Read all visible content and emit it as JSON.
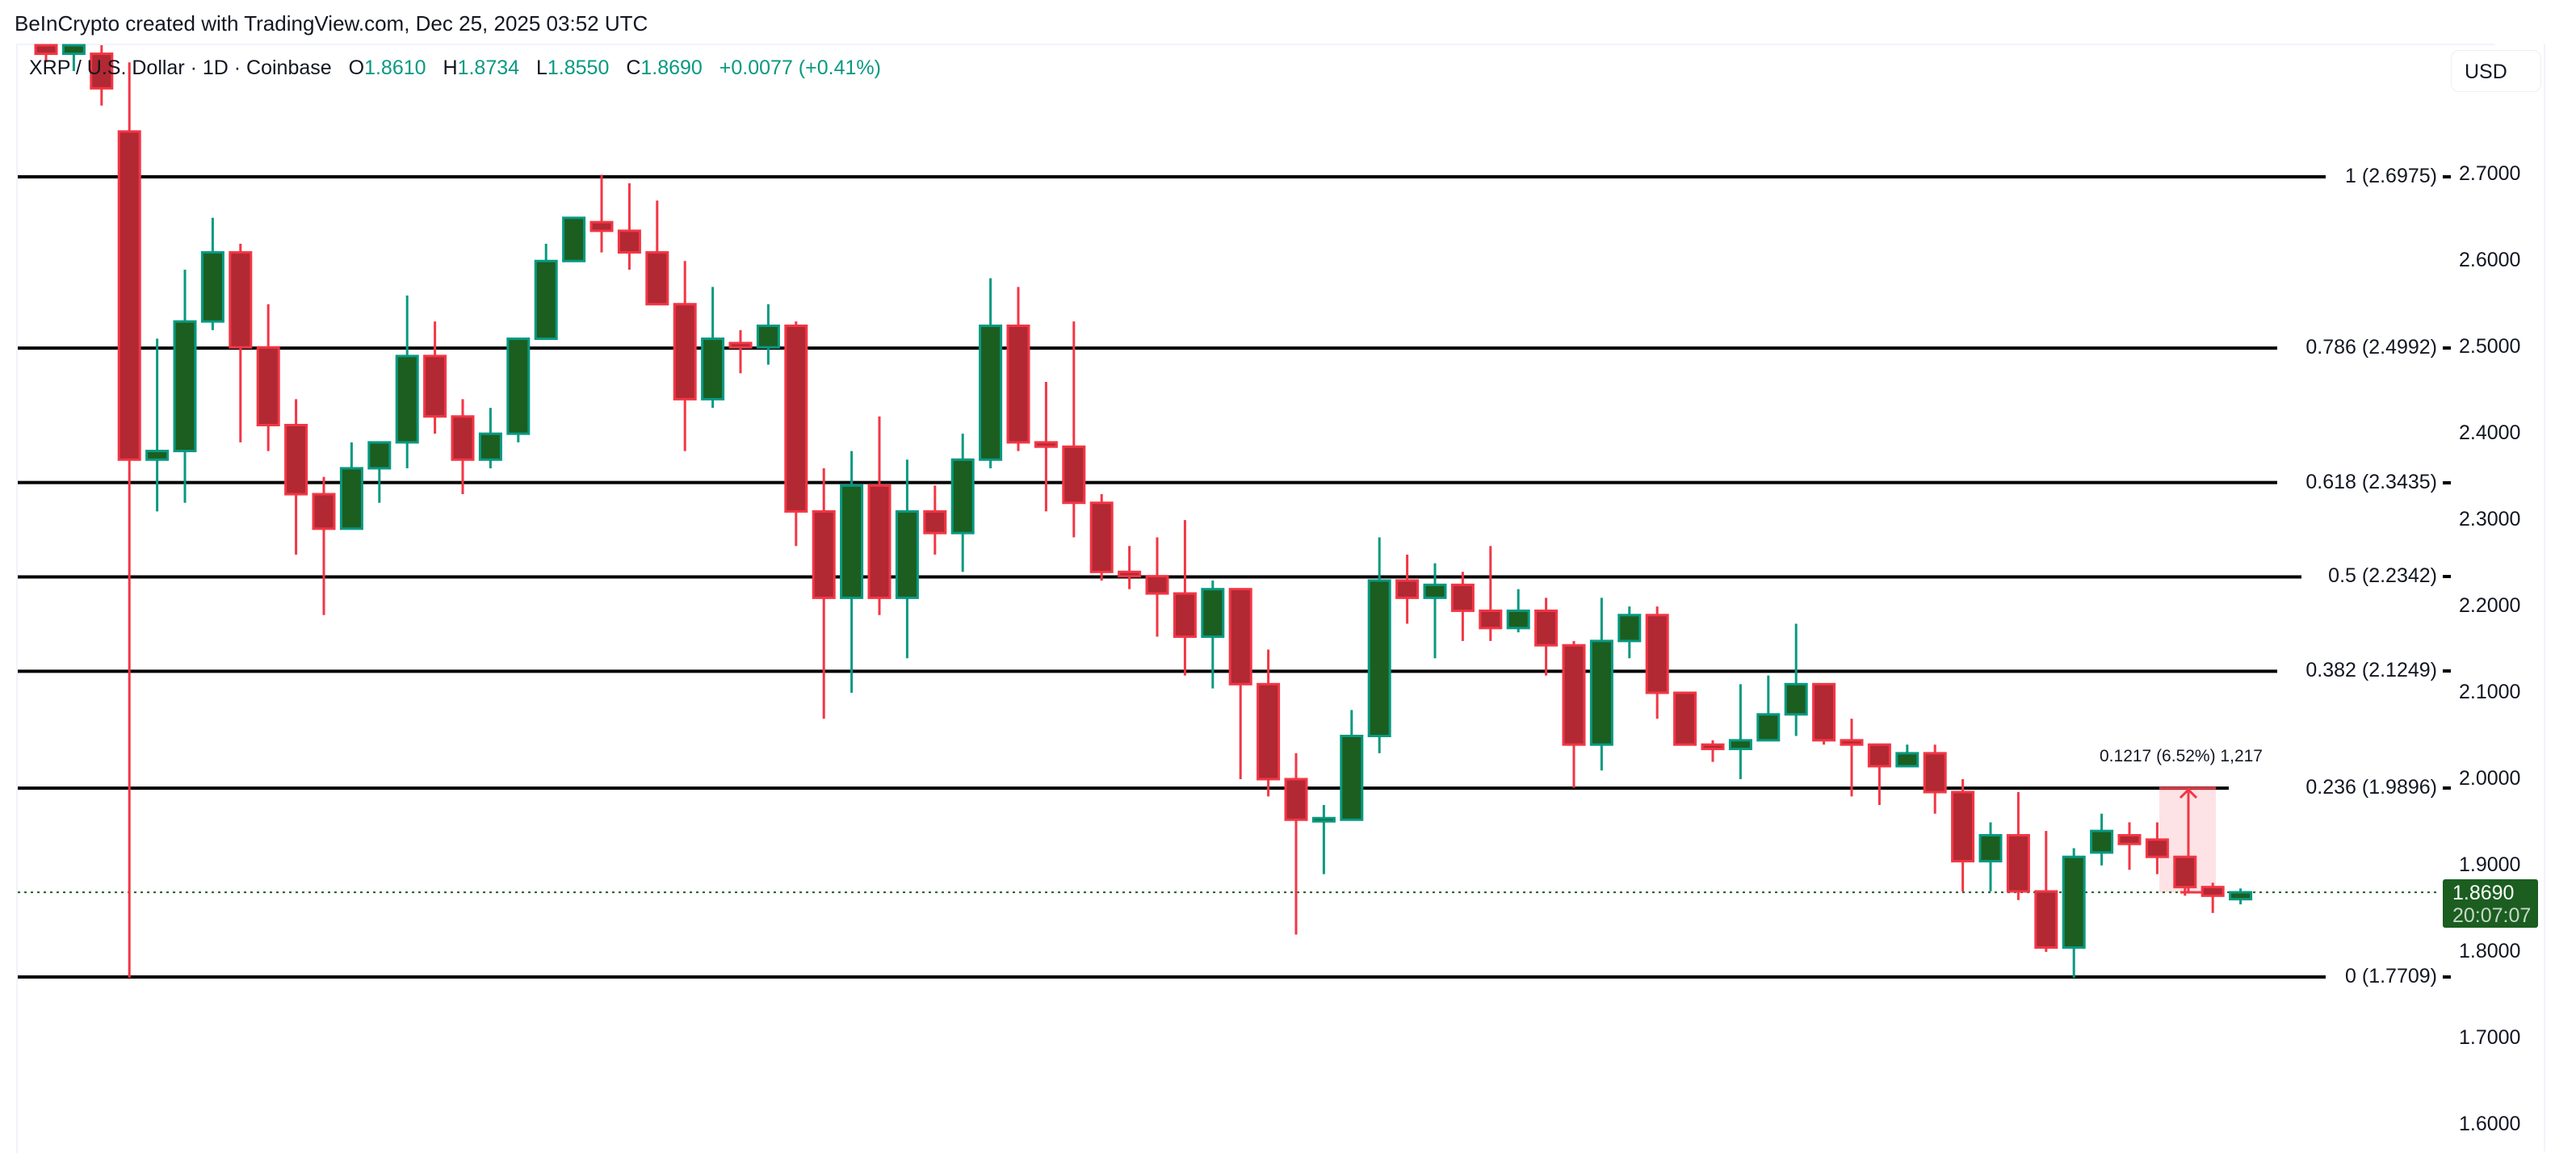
{
  "header": {
    "credit": "BeInCrypto created with TradingView.com, Dec 25, 2025 03:52 UTC"
  },
  "legend": {
    "symbol": "XRP / U.S. Dollar · 1D · Coinbase",
    "open_label": "O",
    "open": "1.8610",
    "high_label": "H",
    "high": "1.8734",
    "low_label": "L",
    "low": "1.8550",
    "close_label": "C",
    "close": "1.8690",
    "change": "+0.0077 (+0.41%)"
  },
  "currency_button": "USD",
  "current_price": {
    "value": "1.8690",
    "countdown": "20:07:07",
    "color": "#1b5e20"
  },
  "measure": {
    "label": "0.1217 (6.52%) 1,217",
    "from": 1.869,
    "to": 1.9896,
    "color": "#f23645"
  },
  "colors": {
    "up_fill": "#1b5e20",
    "up_border": "#089981",
    "down_fill": "#b22833",
    "down_border": "#f23645",
    "fib_line": "#000000"
  },
  "chart_data": {
    "type": "candlestick",
    "title": "XRP / U.S. Dollar · 1D · Coinbase",
    "xlabel": "",
    "ylabel": "USD",
    "ylim": [
      1.56,
      2.85
    ],
    "grid": false,
    "y_ticks": [
      "2.7000",
      "2.6000",
      "2.5000",
      "2.4000",
      "2.3000",
      "2.2000",
      "2.1000",
      "2.0000",
      "1.9000",
      "1.8000",
      "1.7000",
      "1.6000"
    ],
    "fib_levels": [
      {
        "ratio": "1",
        "price": 2.6975,
        "label": "1 (2.6975)"
      },
      {
        "ratio": "0.786",
        "price": 2.4992,
        "label": "0.786 (2.4992)"
      },
      {
        "ratio": "0.618",
        "price": 2.3435,
        "label": "0.618 (2.3435)"
      },
      {
        "ratio": "0.5",
        "price": 2.2342,
        "label": "0.5 (2.2342)"
      },
      {
        "ratio": "0.382",
        "price": 2.1249,
        "label": "0.382 (2.1249)"
      },
      {
        "ratio": "0.236",
        "price": 1.9896,
        "label": "0.236 (1.9896)"
      },
      {
        "ratio": "0",
        "price": 1.7709,
        "label": "0 (1.7709)"
      }
    ],
    "last_ohlc": {
      "open": 1.861,
      "high": 1.8734,
      "low": 1.855,
      "close": 1.869,
      "change": 0.0077,
      "change_pct": 0.41
    },
    "candles": [
      {
        "o": 2.86,
        "h": 2.9,
        "l": 2.83,
        "c": 2.84
      },
      {
        "o": 2.84,
        "h": 2.88,
        "l": 2.82,
        "c": 2.87
      },
      {
        "o": 2.84,
        "h": 2.88,
        "l": 2.78,
        "c": 2.8
      },
      {
        "o": 2.75,
        "h": 2.83,
        "l": 1.77,
        "c": 2.37
      },
      {
        "o": 2.37,
        "h": 2.51,
        "l": 2.31,
        "c": 2.38
      },
      {
        "o": 2.38,
        "h": 2.59,
        "l": 2.32,
        "c": 2.53
      },
      {
        "o": 2.53,
        "h": 2.65,
        "l": 2.52,
        "c": 2.61
      },
      {
        "o": 2.61,
        "h": 2.62,
        "l": 2.39,
        "c": 2.5
      },
      {
        "o": 2.5,
        "h": 2.55,
        "l": 2.38,
        "c": 2.41
      },
      {
        "o": 2.41,
        "h": 2.44,
        "l": 2.26,
        "c": 2.33
      },
      {
        "o": 2.33,
        "h": 2.35,
        "l": 2.19,
        "c": 2.29
      },
      {
        "o": 2.29,
        "h": 2.39,
        "l": 2.29,
        "c": 2.36
      },
      {
        "o": 2.36,
        "h": 2.39,
        "l": 2.32,
        "c": 2.39
      },
      {
        "o": 2.39,
        "h": 2.56,
        "l": 2.36,
        "c": 2.49
      },
      {
        "o": 2.49,
        "h": 2.53,
        "l": 2.4,
        "c": 2.42
      },
      {
        "o": 2.42,
        "h": 2.44,
        "l": 2.33,
        "c": 2.37
      },
      {
        "o": 2.37,
        "h": 2.43,
        "l": 2.36,
        "c": 2.4
      },
      {
        "o": 2.4,
        "h": 2.51,
        "l": 2.39,
        "c": 2.51
      },
      {
        "o": 2.51,
        "h": 2.62,
        "l": 2.51,
        "c": 2.6
      },
      {
        "o": 2.6,
        "h": 2.65,
        "l": 2.6,
        "c": 2.65
      },
      {
        "o": 2.645,
        "h": 2.7,
        "l": 2.61,
        "c": 2.635
      },
      {
        "o": 2.635,
        "h": 2.69,
        "l": 2.59,
        "c": 2.61
      },
      {
        "o": 2.61,
        "h": 2.67,
        "l": 2.56,
        "c": 2.55
      },
      {
        "o": 2.55,
        "h": 2.6,
        "l": 2.38,
        "c": 2.44
      },
      {
        "o": 2.44,
        "h": 2.57,
        "l": 2.43,
        "c": 2.51
      },
      {
        "o": 2.505,
        "h": 2.52,
        "l": 2.47,
        "c": 2.5
      },
      {
        "o": 2.5,
        "h": 2.55,
        "l": 2.48,
        "c": 2.525
      },
      {
        "o": 2.525,
        "h": 2.53,
        "l": 2.27,
        "c": 2.31
      },
      {
        "o": 2.31,
        "h": 2.36,
        "l": 2.07,
        "c": 2.21
      },
      {
        "o": 2.21,
        "h": 2.38,
        "l": 2.1,
        "c": 2.34
      },
      {
        "o": 2.34,
        "h": 2.42,
        "l": 2.19,
        "c": 2.21
      },
      {
        "o": 2.21,
        "h": 2.37,
        "l": 2.14,
        "c": 2.31
      },
      {
        "o": 2.31,
        "h": 2.34,
        "l": 2.26,
        "c": 2.285
      },
      {
        "o": 2.285,
        "h": 2.4,
        "l": 2.24,
        "c": 2.37
      },
      {
        "o": 2.37,
        "h": 2.58,
        "l": 2.36,
        "c": 2.525
      },
      {
        "o": 2.525,
        "h": 2.57,
        "l": 2.38,
        "c": 2.39
      },
      {
        "o": 2.39,
        "h": 2.46,
        "l": 2.31,
        "c": 2.385
      },
      {
        "o": 2.385,
        "h": 2.53,
        "l": 2.28,
        "c": 2.32
      },
      {
        "o": 2.32,
        "h": 2.33,
        "l": 2.23,
        "c": 2.24
      },
      {
        "o": 2.24,
        "h": 2.27,
        "l": 2.22,
        "c": 2.235
      },
      {
        "o": 2.235,
        "h": 2.28,
        "l": 2.165,
        "c": 2.215
      },
      {
        "o": 2.215,
        "h": 2.3,
        "l": 2.12,
        "c": 2.165
      },
      {
        "o": 2.165,
        "h": 2.23,
        "l": 2.105,
        "c": 2.22
      },
      {
        "o": 2.22,
        "h": 2.22,
        "l": 2.0,
        "c": 2.11
      },
      {
        "o": 2.11,
        "h": 2.15,
        "l": 1.98,
        "c": 2.0
      },
      {
        "o": 2.0,
        "h": 2.03,
        "l": 1.82,
        "c": 1.953
      },
      {
        "o": 1.953,
        "h": 1.97,
        "l": 1.89,
        "c": 1.953
      },
      {
        "o": 1.953,
        "h": 2.08,
        "l": 1.953,
        "c": 2.05
      },
      {
        "o": 2.05,
        "h": 2.28,
        "l": 2.03,
        "c": 2.23
      },
      {
        "o": 2.23,
        "h": 2.26,
        "l": 2.18,
        "c": 2.21
      },
      {
        "o": 2.21,
        "h": 2.25,
        "l": 2.14,
        "c": 2.225
      },
      {
        "o": 2.225,
        "h": 2.24,
        "l": 2.16,
        "c": 2.195
      },
      {
        "o": 2.195,
        "h": 2.27,
        "l": 2.16,
        "c": 2.175
      },
      {
        "o": 2.175,
        "h": 2.22,
        "l": 2.17,
        "c": 2.195
      },
      {
        "o": 2.195,
        "h": 2.21,
        "l": 2.12,
        "c": 2.155
      },
      {
        "o": 2.155,
        "h": 2.16,
        "l": 1.99,
        "c": 2.04
      },
      {
        "o": 2.04,
        "h": 2.21,
        "l": 2.01,
        "c": 2.16
      },
      {
        "o": 2.16,
        "h": 2.2,
        "l": 2.14,
        "c": 2.19
      },
      {
        "o": 2.19,
        "h": 2.2,
        "l": 2.07,
        "c": 2.1
      },
      {
        "o": 2.1,
        "h": 2.09,
        "l": 2.04,
        "c": 2.04
      },
      {
        "o": 2.04,
        "h": 2.045,
        "l": 2.02,
        "c": 2.035
      },
      {
        "o": 2.035,
        "h": 2.11,
        "l": 2.0,
        "c": 2.045
      },
      {
        "o": 2.045,
        "h": 2.12,
        "l": 2.05,
        "c": 2.075
      },
      {
        "o": 2.075,
        "h": 2.18,
        "l": 2.05,
        "c": 2.11
      },
      {
        "o": 2.11,
        "h": 2.11,
        "l": 2.04,
        "c": 2.045
      },
      {
        "o": 2.045,
        "h": 2.07,
        "l": 1.98,
        "c": 2.04
      },
      {
        "o": 2.04,
        "h": 2.04,
        "l": 1.97,
        "c": 2.015
      },
      {
        "o": 2.015,
        "h": 2.04,
        "l": 2.02,
        "c": 2.03
      },
      {
        "o": 2.03,
        "h": 2.04,
        "l": 1.96,
        "c": 1.985
      },
      {
        "o": 1.985,
        "h": 2.0,
        "l": 1.87,
        "c": 1.905
      },
      {
        "o": 1.905,
        "h": 1.95,
        "l": 1.87,
        "c": 1.935
      },
      {
        "o": 1.935,
        "h": 1.985,
        "l": 1.86,
        "c": 1.87
      },
      {
        "o": 1.87,
        "h": 1.94,
        "l": 1.8,
        "c": 1.805
      },
      {
        "o": 1.805,
        "h": 1.92,
        "l": 1.77,
        "c": 1.91
      },
      {
        "o": 1.915,
        "h": 1.96,
        "l": 1.9,
        "c": 1.94
      },
      {
        "o": 1.935,
        "h": 1.95,
        "l": 1.895,
        "c": 1.925
      },
      {
        "o": 1.93,
        "h": 1.95,
        "l": 1.89,
        "c": 1.91
      },
      {
        "o": 1.91,
        "h": 1.905,
        "l": 1.865,
        "c": 1.875
      },
      {
        "o": 1.875,
        "h": 1.88,
        "l": 1.845,
        "c": 1.865
      },
      {
        "o": 1.861,
        "h": 1.8734,
        "l": 1.855,
        "c": 1.869
      }
    ]
  }
}
